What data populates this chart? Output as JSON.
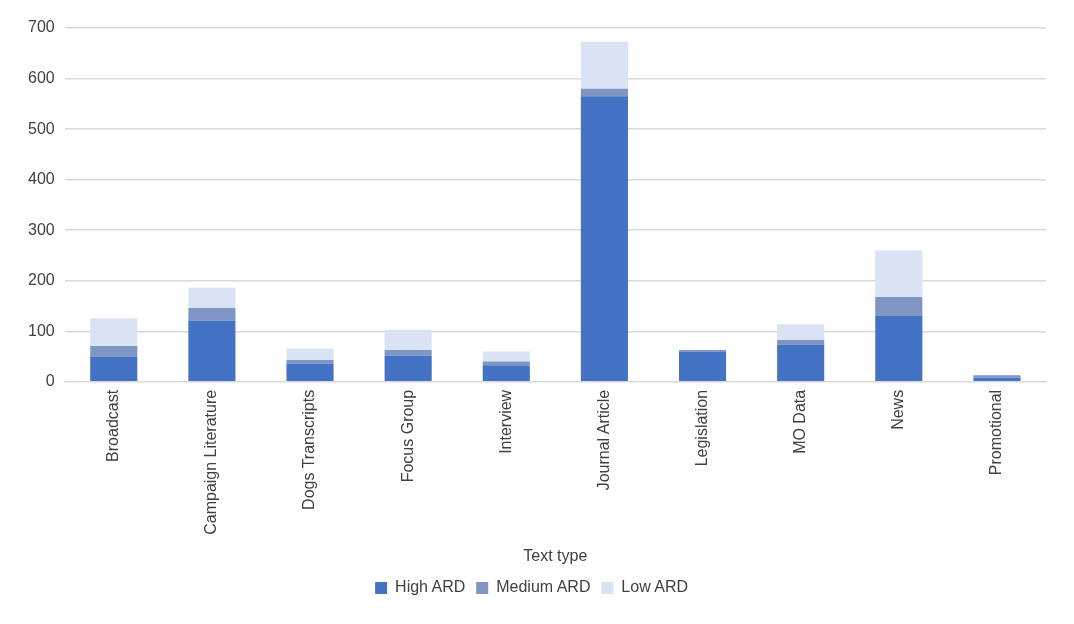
{
  "chart_data": {
    "type": "bar",
    "stacked": true,
    "xlabel": "Text type",
    "categories": [
      "Broadcast",
      "Campaign Literature",
      "Dogs Transcripts",
      "Focus Group",
      "Interview",
      "Journal Article",
      "Legislation",
      "MO Data",
      "News",
      "Promotional"
    ],
    "series": [
      {
        "name": "High ARD",
        "color": "#4472c4",
        "values": [
          50,
          121,
          36,
          52,
          33,
          565,
          60,
          74,
          130,
          8
        ]
      },
      {
        "name": "Medium ARD",
        "color": "#7f95c4",
        "values": [
          21,
          25,
          7,
          11,
          7,
          15,
          3,
          9,
          38,
          5
        ]
      },
      {
        "name": "Low ARD",
        "color": "#dae3f3",
        "values": [
          55,
          40,
          23,
          40,
          20,
          93,
          null,
          31,
          92,
          null
        ]
      }
    ],
    "ylim": [
      0,
      700
    ],
    "yticks": [
      0,
      100,
      200,
      300,
      400,
      500,
      600,
      700
    ],
    "grid": "y",
    "legend": "bottom"
  }
}
